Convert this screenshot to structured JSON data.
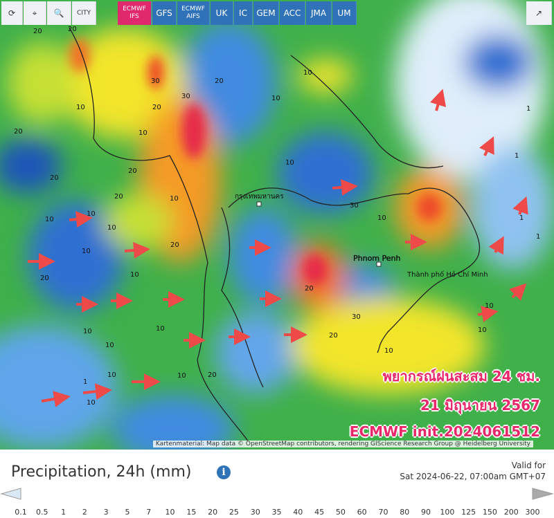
{
  "toolbar": {
    "city": "CITY",
    "models": [
      "ECMWF IFS",
      "GFS",
      "ECMWF AIFS",
      "UK",
      "IC",
      "GEM",
      "ACC",
      "JMA",
      "UM"
    ]
  },
  "map": {
    "places": [
      "กรุงเทพมหานคร",
      "Phnom Penh",
      "Thành phố Hồ Chí Minh"
    ],
    "contour_labels": [
      "20",
      "20",
      "10",
      "20",
      "30",
      "30",
      "20",
      "20",
      "10",
      "10",
      "10",
      "20",
      "20",
      "10",
      "20",
      "10",
      "10",
      "10",
      "10",
      "10",
      "10",
      "1",
      "10",
      "20",
      "10",
      "30",
      "20",
      "20",
      "10",
      "10",
      "10",
      "1",
      "1",
      "1",
      "10",
      "10",
      "10",
      "20",
      "30",
      "10",
      "10",
      "20",
      "1"
    ],
    "overlay": [
      "พยากรณ์ฝนสะสม 24 ชม.",
      "21 มิถุนายน 2567",
      "ECMWF init.2024061512"
    ],
    "attribution": "Kartenmaterial: Map data © OpenStreetMap contributors, rendering GIScience Research Group @ Heidelberg University"
  },
  "panel": {
    "title": "Precipitation, 24h (mm)",
    "valid_label": "Valid for",
    "valid_time": "Sat 2024-06-22, 07:00am GMT+07"
  },
  "legend": {
    "labels": [
      "0.1",
      "0.5",
      "1",
      "2",
      "3",
      "5",
      "7",
      "10",
      "15",
      "20",
      "25",
      "30",
      "35",
      "40",
      "45",
      "50",
      "60",
      "70",
      "80",
      "90",
      "100",
      "125",
      "150",
      "200",
      "300"
    ],
    "colors": [
      "#b7d8f4",
      "#8fc2f0",
      "#63a6ea",
      "#418be0",
      "#2f6fd2",
      "#1f54bb",
      "#1a9a4a",
      "#3cba3c",
      "#86d23a",
      "#c6e034",
      "#f2e52c",
      "#f5c12a",
      "#f59a28",
      "#f27326",
      "#ee4c2a",
      "#e62a4a",
      "#c81e2e",
      "#a3141c",
      "#7d0e14",
      "#6a1e8c",
      "#a030b8",
      "#d060d0",
      "#e8a0e4",
      "#eed8f2"
    ]
  }
}
